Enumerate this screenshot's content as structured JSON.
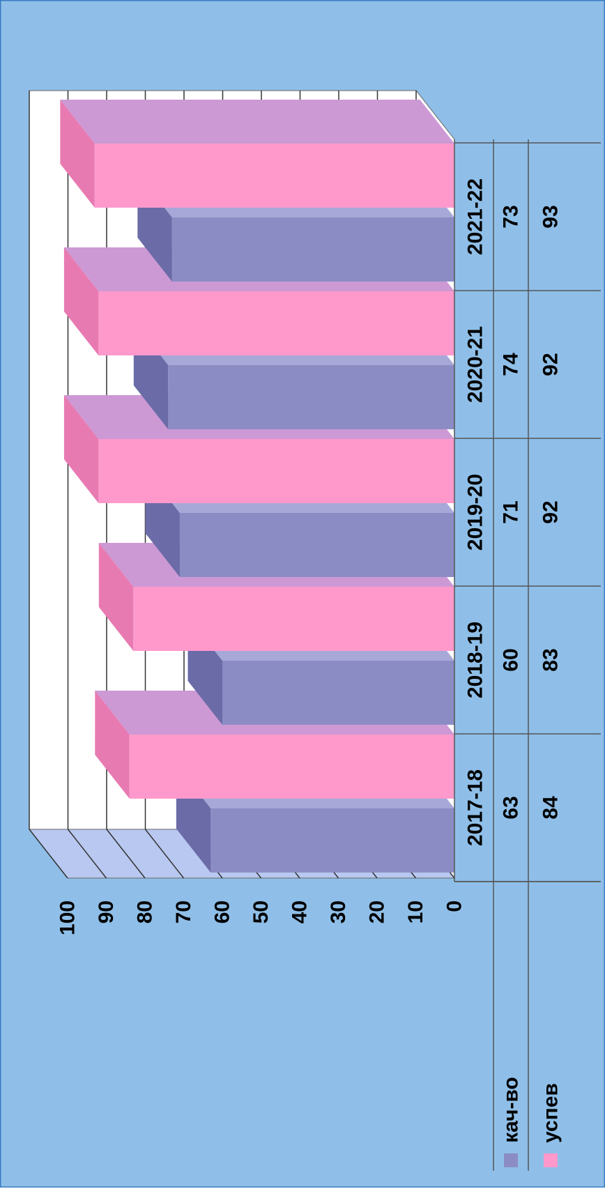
{
  "chart_data": {
    "type": "bar",
    "orientation": "3d-grouped-rotated",
    "categories": [
      "2017-18",
      "2018-19",
      "2019-20",
      "2020-21",
      "2021-22"
    ],
    "series": [
      {
        "name": "кач-во",
        "values": [
          63,
          60,
          71,
          74,
          73
        ],
        "color": "#8c8cc4",
        "side": "#6b6ba8",
        "top": "#a8a8d8"
      },
      {
        "name": "успев",
        "values": [
          84,
          83,
          92,
          92,
          93
        ],
        "color": "#ff99cc",
        "side": "#e87ab2",
        "top": "#cc99d4"
      }
    ],
    "ylim": [
      0,
      100
    ],
    "yticks": [
      0,
      10,
      20,
      30,
      40,
      50,
      60,
      70,
      80,
      90,
      100
    ],
    "grid": true,
    "legend": "bottom-left",
    "data_table": true,
    "colors": {
      "background": "#8fbfe8",
      "plot_bg": "#ffffff",
      "floor": "#b8c8f0",
      "grid": "#333333",
      "text": "#000000"
    }
  }
}
